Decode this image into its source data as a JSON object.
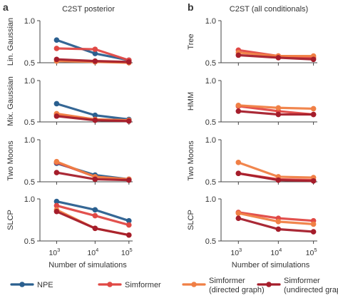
{
  "figure": {
    "panels": [
      {
        "letter": "a",
        "title": "C2ST posterior"
      },
      {
        "letter": "b",
        "title": "C2ST (all conditionals)"
      }
    ],
    "x_axis": {
      "label": "Number of simulations",
      "ticks": [
        {
          "base": "10",
          "exp": "3"
        },
        {
          "base": "10",
          "exp": "4"
        },
        {
          "base": "10",
          "exp": "5"
        }
      ]
    }
  },
  "legend": [
    {
      "lines": [
        "NPE"
      ],
      "color": "#2a5f8f"
    },
    {
      "lines": [
        "Simformer"
      ],
      "color": "#e04844"
    },
    {
      "lines": [
        "Simformer",
        "(directed graph)"
      ],
      "color": "#f07f45"
    },
    {
      "lines": [
        "Simformer",
        "(undirected graph)"
      ],
      "color": "#a51d2b"
    }
  ],
  "chart_data": [
    {
      "type": "line",
      "panel": "a",
      "column_title": "C2ST posterior",
      "ylabel": "Lin. Gaussian",
      "x": [
        1000,
        10000,
        100000
      ],
      "x_scale": "log",
      "ylim": [
        0.5,
        1.0
      ],
      "yticks": [
        "0.5",
        "1.0"
      ],
      "series": [
        {
          "name": "NPE",
          "color": "#2a5f8f",
          "values": [
            0.77,
            0.61,
            0.53
          ]
        },
        {
          "name": "Simformer",
          "color": "#e04844",
          "values": [
            0.67,
            0.66,
            0.53
          ]
        },
        {
          "name": "Simformer (directed graph)",
          "color": "#f07f45",
          "values": [
            0.52,
            0.51,
            0.5
          ]
        },
        {
          "name": "Simformer (undirected graph)",
          "color": "#a51d2b",
          "values": [
            0.54,
            0.52,
            0.51
          ]
        }
      ]
    },
    {
      "type": "line",
      "panel": "a",
      "column_title": "C2ST posterior",
      "ylabel": "Mix. Gaussian",
      "x": [
        1000,
        10000,
        100000
      ],
      "x_scale": "log",
      "ylim": [
        0.5,
        1.0
      ],
      "yticks": [
        "0.5",
        "1.0"
      ],
      "series": [
        {
          "name": "NPE",
          "color": "#2a5f8f",
          "values": [
            0.72,
            0.58,
            0.53
          ]
        },
        {
          "name": "Simformer",
          "color": "#e04844",
          "values": [
            0.59,
            0.53,
            0.52
          ]
        },
        {
          "name": "Simformer (directed graph)",
          "color": "#f07f45",
          "values": [
            0.6,
            0.53,
            0.52
          ]
        },
        {
          "name": "Simformer (undirected graph)",
          "color": "#a51d2b",
          "values": [
            0.57,
            0.52,
            0.51
          ]
        }
      ]
    },
    {
      "type": "line",
      "panel": "a",
      "column_title": "C2ST posterior",
      "ylabel": "Two Moons",
      "x": [
        1000,
        10000,
        100000
      ],
      "x_scale": "log",
      "ylim": [
        0.5,
        1.0
      ],
      "yticks": [
        "0.5",
        "1.0"
      ],
      "series": [
        {
          "name": "NPE",
          "color": "#2a5f8f",
          "values": [
            0.72,
            0.58,
            0.53
          ]
        },
        {
          "name": "Simformer",
          "color": "#e04844",
          "values": [
            0.73,
            0.56,
            0.53
          ]
        },
        {
          "name": "Simformer (directed graph)",
          "color": "#f07f45",
          "values": [
            0.74,
            0.56,
            0.53
          ]
        },
        {
          "name": "Simformer (undirected graph)",
          "color": "#a51d2b",
          "values": [
            0.61,
            0.53,
            0.52
          ]
        }
      ]
    },
    {
      "type": "line",
      "panel": "a",
      "column_title": "C2ST posterior",
      "ylabel": "SLCP",
      "x": [
        1000,
        10000,
        100000
      ],
      "x_scale": "log",
      "ylim": [
        0.5,
        1.0
      ],
      "yticks": [
        "0.5",
        "1.0"
      ],
      "series": [
        {
          "name": "NPE",
          "color": "#2a5f8f",
          "values": [
            0.97,
            0.87,
            0.74
          ]
        },
        {
          "name": "Simformer",
          "color": "#e04844",
          "values": [
            0.92,
            0.8,
            0.69
          ]
        },
        {
          "name": "Simformer (directed graph)",
          "color": "#f07f45",
          "values": [
            0.87,
            0.65,
            0.57
          ]
        },
        {
          "name": "Simformer (undirected graph)",
          "color": "#a51d2b",
          "values": [
            0.85,
            0.65,
            0.57
          ]
        }
      ]
    },
    {
      "type": "line",
      "panel": "b",
      "column_title": "C2ST (all conditionals)",
      "ylabel": "Tree",
      "x": [
        1000,
        10000,
        100000
      ],
      "x_scale": "log",
      "ylim": [
        0.5,
        1.0
      ],
      "yticks": [
        "0.5",
        "1.0"
      ],
      "series": [
        {
          "name": "Simformer",
          "color": "#e04844",
          "values": [
            0.65,
            0.58,
            0.56
          ]
        },
        {
          "name": "Simformer (directed graph)",
          "color": "#f07f45",
          "values": [
            0.62,
            0.58,
            0.58
          ]
        },
        {
          "name": "Simformer (undirected graph)",
          "color": "#a51d2b",
          "values": [
            0.59,
            0.56,
            0.54
          ]
        }
      ]
    },
    {
      "type": "line",
      "panel": "b",
      "column_title": "C2ST (all conditionals)",
      "ylabel": "HMM",
      "x": [
        1000,
        10000,
        100000
      ],
      "x_scale": "log",
      "ylim": [
        0.5,
        1.0
      ],
      "yticks": [
        "0.5",
        "1.0"
      ],
      "series": [
        {
          "name": "Simformer",
          "color": "#e04844",
          "values": [
            0.69,
            0.63,
            0.59
          ]
        },
        {
          "name": "Simformer (directed graph)",
          "color": "#f07f45",
          "values": [
            0.7,
            0.67,
            0.66
          ]
        },
        {
          "name": "Simformer (undirected graph)",
          "color": "#a51d2b",
          "values": [
            0.63,
            0.59,
            0.59
          ]
        }
      ]
    },
    {
      "type": "line",
      "panel": "b",
      "column_title": "C2ST (all conditionals)",
      "ylabel": "Two Moons",
      "x": [
        1000,
        10000,
        100000
      ],
      "x_scale": "log",
      "ylim": [
        0.5,
        1.0
      ],
      "yticks": [
        "0.5",
        "1.0"
      ],
      "series": [
        {
          "name": "Simformer",
          "color": "#e04844",
          "values": [
            0.6,
            0.53,
            0.52
          ]
        },
        {
          "name": "Simformer (directed graph)",
          "color": "#f07f45",
          "values": [
            0.73,
            0.56,
            0.55
          ]
        },
        {
          "name": "Simformer (undirected graph)",
          "color": "#a51d2b",
          "values": [
            0.6,
            0.52,
            0.51
          ]
        }
      ]
    },
    {
      "type": "line",
      "panel": "b",
      "column_title": "C2ST (all conditionals)",
      "ylabel": "SLCP",
      "x": [
        1000,
        10000,
        100000
      ],
      "x_scale": "log",
      "ylim": [
        0.5,
        1.0
      ],
      "yticks": [
        "0.5",
        "1.0"
      ],
      "series": [
        {
          "name": "Simformer",
          "color": "#e04844",
          "values": [
            0.84,
            0.77,
            0.74
          ]
        },
        {
          "name": "Simformer (directed graph)",
          "color": "#f07f45",
          "values": [
            0.83,
            0.73,
            0.7
          ]
        },
        {
          "name": "Simformer (undirected graph)",
          "color": "#a51d2b",
          "values": [
            0.77,
            0.64,
            0.61
          ]
        }
      ]
    }
  ]
}
